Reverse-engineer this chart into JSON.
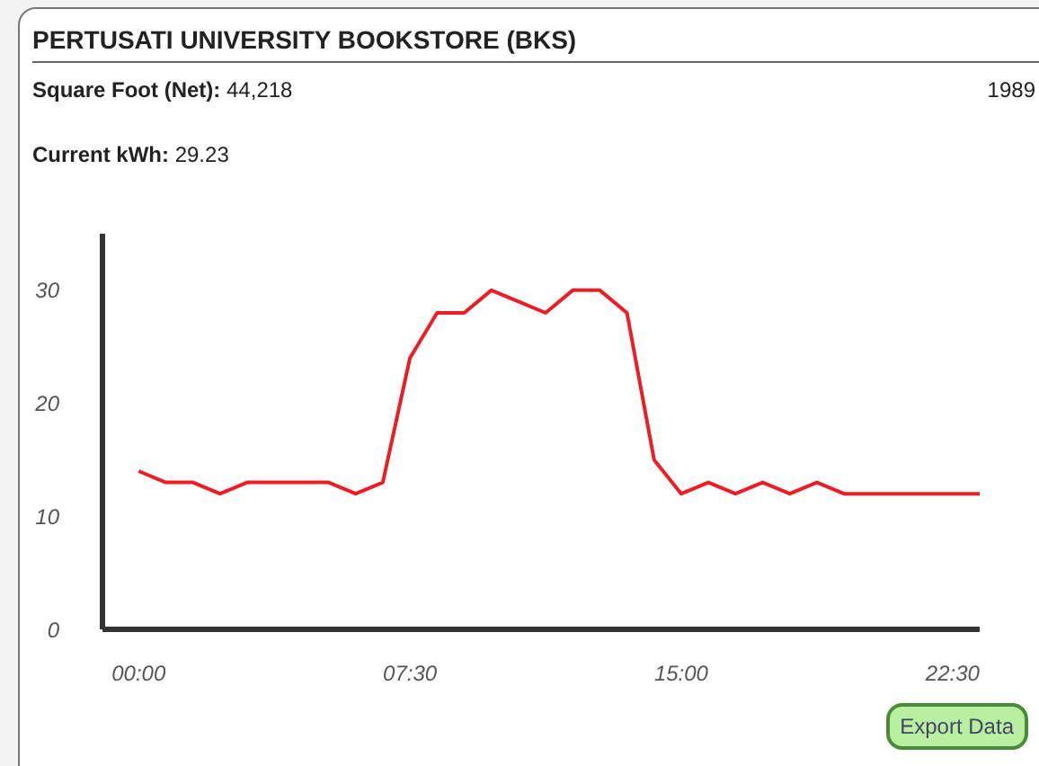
{
  "chart_data": {
    "type": "line",
    "title": "PERTUSATI UNIVERSITY BOOKSTORE (BKS)",
    "annotations": [
      "Square Foot (Net): 44,218",
      "1989",
      "Current kWh: 29.23",
      "Export Data"
    ],
    "x": [
      0,
      0.75,
      1.5,
      2.25,
      3,
      3.75,
      4.5,
      5.25,
      6,
      6.75,
      7.5,
      8.25,
      9,
      9.75,
      10.5,
      11.25,
      12,
      12.75,
      13.5,
      14.25,
      15,
      15.75,
      16.5,
      17.25,
      18,
      18.75,
      19.5,
      20.25,
      21,
      21.75,
      22.5,
      23.25
    ],
    "series": [
      {
        "color": "#ee1c25",
        "values": [
          14,
          13,
          13,
          12,
          13,
          13,
          13,
          13,
          12,
          13,
          24,
          28,
          28,
          30,
          29,
          28,
          30,
          30,
          28,
          15,
          12,
          13,
          12,
          13,
          12,
          13,
          12,
          12,
          12,
          12,
          12,
          12
        ]
      }
    ],
    "xlim": [
      -1,
      23.25
    ],
    "xticks": [
      {
        "value": 0,
        "label": "00:00"
      },
      {
        "value": 7.5,
        "label": "07:30"
      },
      {
        "value": 15,
        "label": "15:00"
      },
      {
        "value": 22.5,
        "label": "22:30"
      }
    ],
    "ylim": [
      0,
      35
    ],
    "yticks": [
      0,
      10,
      20,
      30
    ],
    "grid": false,
    "legend": false,
    "marker": "none",
    "line_style": "solid"
  }
}
